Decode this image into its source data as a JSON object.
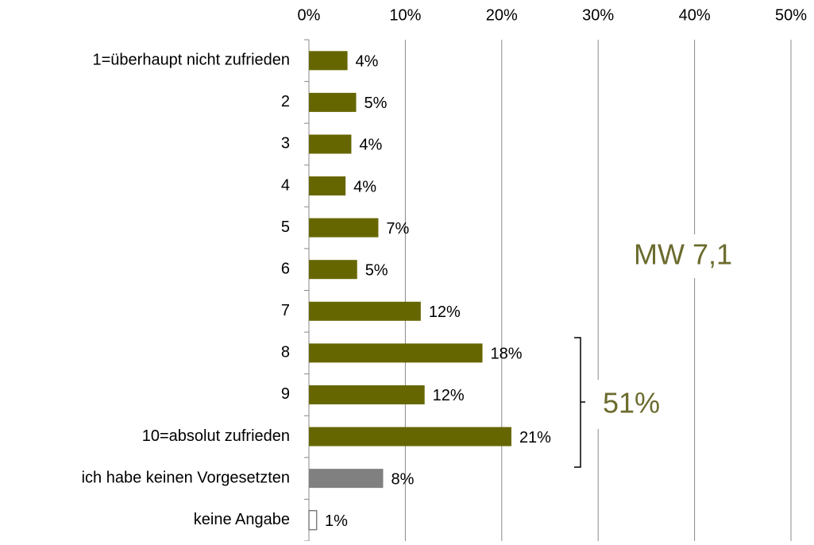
{
  "chart_data": {
    "type": "bar",
    "orientation": "horizontal",
    "categories": [
      "1=überhaupt nicht zufrieden",
      "2",
      "3",
      "4",
      "5",
      "6",
      "7",
      "8",
      "9",
      "10=absolut zufrieden",
      "ich habe keinen Vorgesetzten",
      "keine Angabe"
    ],
    "values": [
      4.0,
      4.9,
      4.4,
      3.8,
      7.2,
      5.0,
      11.6,
      18.0,
      12.0,
      21.0,
      7.7,
      0.8
    ],
    "value_labels": [
      "4%",
      "5%",
      "4%",
      "4%",
      "7%",
      "5%",
      "12%",
      "18%",
      "12%",
      "21%",
      "8%",
      "1%"
    ],
    "colors": [
      "#666600",
      "#666600",
      "#666600",
      "#666600",
      "#666600",
      "#666600",
      "#666600",
      "#666600",
      "#666600",
      "#666600",
      "#808080",
      "#ffffff"
    ],
    "xlim": [
      0,
      50
    ],
    "xticks": [
      {
        "value": 0,
        "label": "0%"
      },
      {
        "value": 10,
        "label": "10%"
      },
      {
        "value": 20,
        "label": "20%"
      },
      {
        "value": 30,
        "label": "30%"
      },
      {
        "value": 40,
        "label": "40%"
      },
      {
        "value": 50,
        "label": "50%"
      }
    ],
    "grid": true,
    "annotations": [
      "MW 7,1",
      "51%"
    ]
  }
}
